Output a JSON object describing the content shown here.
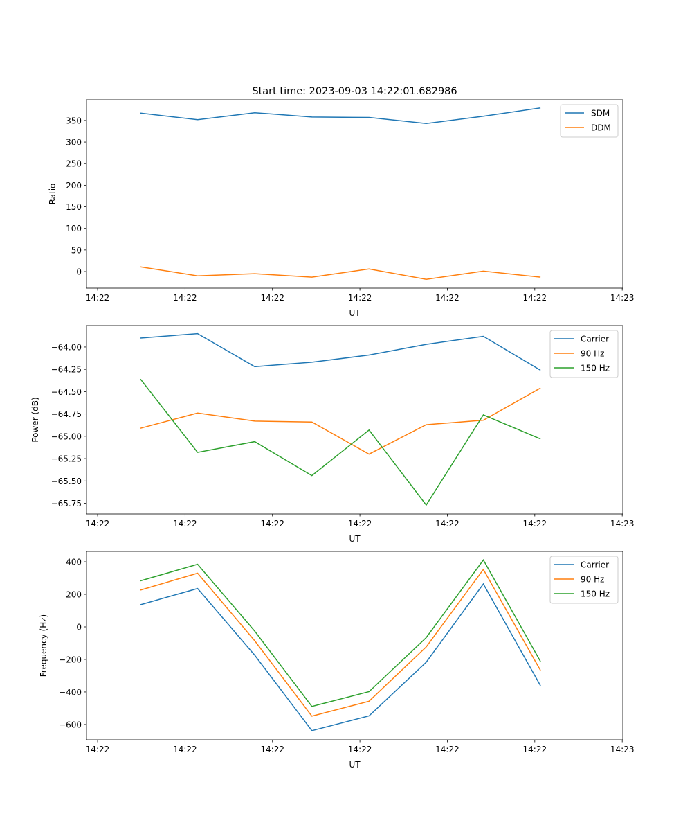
{
  "chart_data": [
    {
      "type": "line",
      "title": "Start time: 2023-09-03 14:22:01.682986",
      "xlabel": "UT",
      "ylabel": "Ratio",
      "x": [
        0,
        1,
        2,
        3,
        4,
        5,
        6,
        7
      ],
      "xlim": [
        -0.944,
        8.44
      ],
      "xticks": [
        -0.75,
        0.78,
        2.31,
        3.84,
        5.37,
        6.9,
        8.43
      ],
      "xtick_labels": [
        "14:22",
        "14:22",
        "14:22",
        "14:22",
        "14:22",
        "14:22",
        "14:23"
      ],
      "ylim": [
        -38.5,
        398
      ],
      "yticks": [
        0,
        50,
        100,
        150,
        200,
        250,
        300,
        350
      ],
      "ytick_labels": [
        "0",
        "50",
        "100",
        "150",
        "200",
        "250",
        "300",
        "350"
      ],
      "legend": "top-right",
      "series": [
        {
          "name": "SDM",
          "color": "#1f77b4",
          "values": [
            367,
            352,
            368,
            358,
            357,
            343,
            360,
            379
          ]
        },
        {
          "name": "DDM",
          "color": "#ff7f0e",
          "values": [
            11,
            -10,
            -5,
            -13,
            6,
            -18,
            1,
            -13
          ]
        }
      ]
    },
    {
      "type": "line",
      "title": "",
      "xlabel": "UT",
      "ylabel": "Power (dB)",
      "x": [
        0,
        1,
        2,
        3,
        4,
        5,
        6,
        7
      ],
      "xlim": [
        -0.944,
        8.44
      ],
      "xticks": [
        -0.75,
        0.78,
        2.31,
        3.84,
        5.37,
        6.9,
        8.43
      ],
      "xtick_labels": [
        "14:22",
        "14:22",
        "14:22",
        "14:22",
        "14:22",
        "14:22",
        "14:23"
      ],
      "ylim": [
        -65.87,
        -63.76
      ],
      "yticks": [
        -64.0,
        -64.25,
        -64.5,
        -64.75,
        -65.0,
        -65.25,
        -65.5,
        -65.75
      ],
      "ytick_labels": [
        "−64.00",
        "−64.25",
        "−64.50",
        "−64.75",
        "−65.00",
        "−65.25",
        "−65.50",
        "−65.75"
      ],
      "legend": "top-right",
      "series": [
        {
          "name": "Carrier",
          "color": "#1f77b4",
          "values": [
            -63.9,
            -63.85,
            -64.22,
            -64.17,
            -64.09,
            -63.97,
            -63.88,
            -64.26
          ]
        },
        {
          "name": "90 Hz",
          "color": "#ff7f0e",
          "values": [
            -64.91,
            -64.74,
            -64.83,
            -64.84,
            -65.2,
            -64.87,
            -64.82,
            -64.46
          ]
        },
        {
          "name": "150 Hz",
          "color": "#2ca02c",
          "values": [
            -64.36,
            -65.18,
            -65.06,
            -65.44,
            -64.93,
            -65.77,
            -64.76,
            -65.03
          ]
        }
      ]
    },
    {
      "type": "line",
      "title": "",
      "xlabel": "UT",
      "ylabel": "Frequency (Hz)",
      "x": [
        0,
        1,
        2,
        3,
        4,
        5,
        6,
        7
      ],
      "xlim": [
        -0.944,
        8.44
      ],
      "xticks": [
        -0.75,
        0.78,
        2.31,
        3.84,
        5.37,
        6.9,
        8.43
      ],
      "xtick_labels": [
        "14:22",
        "14:22",
        "14:22",
        "14:22",
        "14:22",
        "14:22",
        "14:23"
      ],
      "ylim": [
        -694,
        464
      ],
      "yticks": [
        -600,
        -400,
        -200,
        0,
        200,
        400
      ],
      "ytick_labels": [
        "−600",
        "−400",
        "−200",
        "0",
        "200",
        "400"
      ],
      "legend": "top-right",
      "series": [
        {
          "name": "Carrier",
          "color": "#1f77b4",
          "values": [
            136,
            236,
            -174,
            -638,
            -547,
            -217,
            264,
            -362
          ]
        },
        {
          "name": "90 Hz",
          "color": "#ff7f0e",
          "values": [
            226,
            330,
            -85,
            -549,
            -457,
            -123,
            353,
            -268
          ]
        },
        {
          "name": "150 Hz",
          "color": "#2ca02c",
          "values": [
            283,
            385,
            -26,
            -489,
            -398,
            -66,
            411,
            -213
          ]
        }
      ]
    }
  ]
}
